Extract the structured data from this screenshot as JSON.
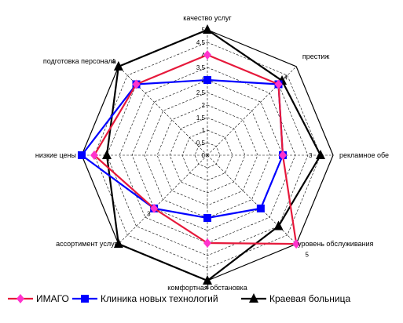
{
  "chart_data": {
    "type": "radar",
    "axes": [
      "качество услуг",
      "престиж",
      "рекламное обе",
      "уровень обслуживания",
      "комфортная обстановка",
      "ассортимент услуг",
      "низкие цены",
      "подготовка персонала"
    ],
    "scale_ticks": [
      "0",
      "0,5",
      "1",
      "1,5",
      "2",
      "2,5",
      "3",
      "3,5",
      "4",
      "4,5",
      "5"
    ],
    "rlim": [
      0,
      5
    ],
    "grid": true,
    "series": [
      {
        "name": "ИМАГО",
        "color": "#e6193b",
        "marker": "diamond",
        "marker_color": "#ff33cc",
        "values": [
          4,
          4,
          3,
          5,
          3.5,
          3,
          4.5,
          4
        ]
      },
      {
        "name": "Клиника новых технологий",
        "color": "#0000ff",
        "marker": "square",
        "marker_color": "#0000ff",
        "values": [
          3,
          4,
          3,
          3,
          2.5,
          3,
          5,
          4
        ]
      },
      {
        "name": "Краевая больница",
        "color": "#000000",
        "marker": "triangle",
        "marker_color": "#000000",
        "values": [
          5,
          4.2,
          4.5,
          4,
          5,
          5,
          4,
          5
        ]
      }
    ],
    "value_labels": [
      {
        "text": "4",
        "axis": 1,
        "r": 4.4
      },
      {
        "text": "3",
        "axis": 2,
        "r": 4.1
      },
      {
        "text": "5",
        "axis": 3,
        "r": 5.6
      },
      {
        "text": "4",
        "axis": 4,
        "r": 5.25
      },
      {
        "text": "3",
        "axis": 5,
        "r": 3.3
      },
      {
        "text": "4",
        "axis": 7,
        "r": 5.3
      }
    ],
    "legend": {
      "position": "bottom"
    }
  }
}
